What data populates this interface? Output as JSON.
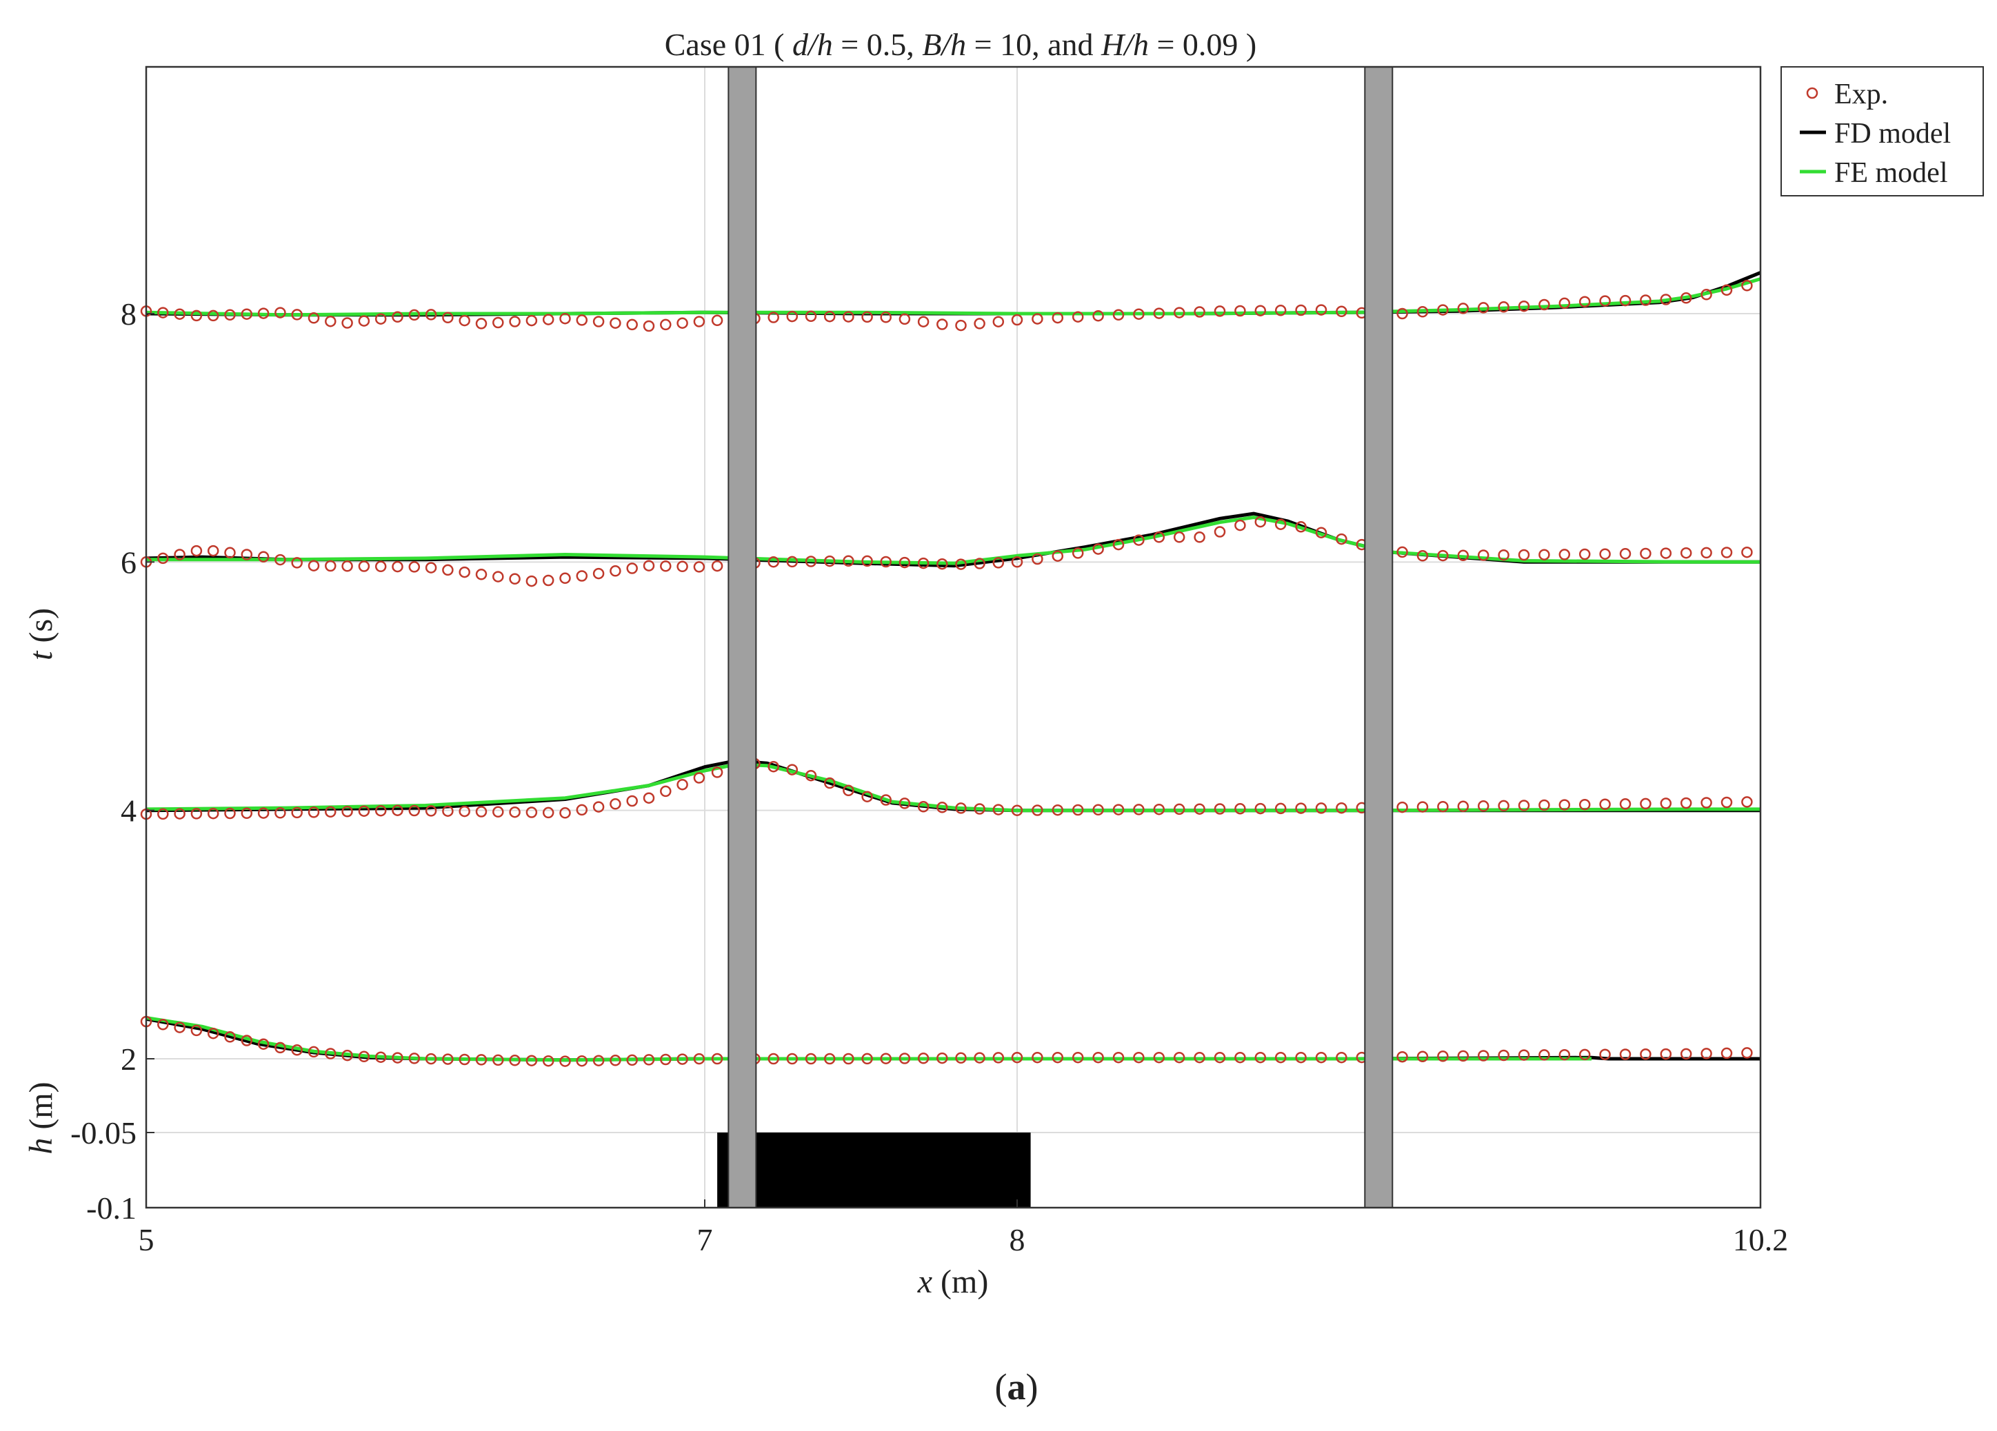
{
  "caption": {
    "open": "(",
    "letter": "a",
    "close": ")"
  },
  "chart_data": {
    "type": "line",
    "title_parts": [
      "Case 01 ( ",
      "d/h",
      " = 0.5, ",
      "B/h",
      " = 10, and ",
      "H/h",
      " = 0.09 )"
    ],
    "xlabel": {
      "var": "x",
      "unit": " (m)"
    },
    "ylabel_top": {
      "var": "t",
      "unit": " (s)"
    },
    "ylabel_bottom": {
      "var": "h",
      "unit": " (m)"
    },
    "xlim": [
      5,
      10.2
    ],
    "x_ticks": [
      5,
      7,
      8,
      10.2
    ],
    "x_tick_labels": [
      "5",
      "7",
      "8",
      "10.2"
    ],
    "t_ticks": [
      2,
      4,
      6,
      8
    ],
    "t_tick_labels": [
      "2",
      "4",
      "6",
      "8"
    ],
    "t_range": [
      1.4,
      10
    ],
    "h_ticks": [
      -0.05,
      -0.1
    ],
    "h_tick_labels": [
      "-0.05",
      "-0.1"
    ],
    "h_range": [
      -0.1,
      0
    ],
    "grid": true,
    "legend": {
      "position": "outside-right-top",
      "entries": [
        {
          "label": "Exp.",
          "color": "#c0392b",
          "style": "circle"
        },
        {
          "label": "FD model",
          "color": "#000000",
          "style": "line"
        },
        {
          "label": "FE model",
          "color": "#33dd33",
          "style": "line"
        }
      ]
    },
    "gauges": [
      7.12,
      9.07
    ],
    "obstacle": {
      "x_start": 7.04,
      "x_end": 8.04,
      "top_h": -0.05
    },
    "colors": {
      "exp": "#c0392b",
      "fd": "#000000",
      "fe": "#33dd33",
      "gauge": "#a0a0a0",
      "obstacle": "#000000",
      "grid": "#dcdcdc"
    },
    "profiles": [
      {
        "t": 2,
        "fd": [
          [
            5.0,
            2.32
          ],
          [
            5.2,
            2.24
          ],
          [
            5.4,
            2.12
          ],
          [
            5.6,
            2.05
          ],
          [
            5.8,
            2.01
          ],
          [
            6.0,
            2.0
          ],
          [
            6.5,
            1.99
          ],
          [
            7.0,
            2.0
          ],
          [
            8.0,
            2.0
          ],
          [
            9.0,
            2.0
          ],
          [
            9.7,
            2.01
          ],
          [
            9.75,
            2.0
          ],
          [
            10.2,
            2.0
          ]
        ],
        "fe": [
          [
            5.0,
            2.33
          ],
          [
            5.2,
            2.26
          ],
          [
            5.4,
            2.14
          ],
          [
            5.6,
            2.06
          ],
          [
            5.8,
            2.02
          ],
          [
            6.0,
            2.0
          ],
          [
            6.5,
            1.99
          ],
          [
            7.0,
            2.0
          ],
          [
            8.0,
            2.0
          ],
          [
            9.0,
            2.0
          ],
          [
            9.7,
            2.0
          ]
        ],
        "exp": [
          [
            5.0,
            2.3
          ],
          [
            5.25,
            2.2
          ],
          [
            5.5,
            2.08
          ],
          [
            5.75,
            2.02
          ],
          [
            6.0,
            2.0
          ],
          [
            6.5,
            1.98
          ],
          [
            7.0,
            2.0
          ],
          [
            7.5,
            2.0
          ],
          [
            8.0,
            2.01
          ],
          [
            8.5,
            2.01
          ],
          [
            9.0,
            2.01
          ],
          [
            9.5,
            2.03
          ],
          [
            10.0,
            2.04
          ],
          [
            10.2,
            2.05
          ]
        ]
      },
      {
        "t": 4,
        "fd": [
          [
            5.0,
            4.0
          ],
          [
            5.5,
            4.01
          ],
          [
            6.0,
            4.02
          ],
          [
            6.5,
            4.09
          ],
          [
            6.8,
            4.2
          ],
          [
            7.0,
            4.35
          ],
          [
            7.1,
            4.4
          ],
          [
            7.2,
            4.38
          ],
          [
            7.4,
            4.22
          ],
          [
            7.6,
            4.06
          ],
          [
            7.8,
            4.01
          ],
          [
            8.0,
            4.0
          ],
          [
            9.0,
            4.0
          ],
          [
            10.0,
            4.0
          ],
          [
            10.2,
            4.0
          ]
        ],
        "fe": [
          [
            5.0,
            4.01
          ],
          [
            5.5,
            4.02
          ],
          [
            6.0,
            4.04
          ],
          [
            6.5,
            4.1
          ],
          [
            6.8,
            4.2
          ],
          [
            7.0,
            4.32
          ],
          [
            7.1,
            4.37
          ],
          [
            7.2,
            4.36
          ],
          [
            7.4,
            4.24
          ],
          [
            7.6,
            4.07
          ],
          [
            7.8,
            4.02
          ],
          [
            8.0,
            4.0
          ],
          [
            9.0,
            4.0
          ],
          [
            10.0,
            4.01
          ],
          [
            10.2,
            4.01
          ]
        ],
        "exp": [
          [
            5.0,
            3.97
          ],
          [
            5.5,
            3.98
          ],
          [
            5.9,
            4.0
          ],
          [
            6.2,
            3.99
          ],
          [
            6.5,
            3.98
          ],
          [
            6.8,
            4.1
          ],
          [
            7.0,
            4.28
          ],
          [
            7.15,
            4.38
          ],
          [
            7.3,
            4.32
          ],
          [
            7.5,
            4.12
          ],
          [
            7.7,
            4.03
          ],
          [
            8.0,
            4.0
          ],
          [
            9.0,
            4.02
          ],
          [
            9.5,
            4.04
          ],
          [
            10.0,
            4.06
          ],
          [
            10.2,
            4.07
          ]
        ]
      },
      {
        "t": 6,
        "fd": [
          [
            5.0,
            6.03
          ],
          [
            5.2,
            6.04
          ],
          [
            5.5,
            6.02
          ],
          [
            6.0,
            6.02
          ],
          [
            6.5,
            6.04
          ],
          [
            7.0,
            6.03
          ],
          [
            7.5,
            5.99
          ],
          [
            7.8,
            5.97
          ],
          [
            8.0,
            6.03
          ],
          [
            8.2,
            6.12
          ],
          [
            8.4,
            6.22
          ],
          [
            8.6,
            6.35
          ],
          [
            8.7,
            6.39
          ],
          [
            8.8,
            6.33
          ],
          [
            8.95,
            6.18
          ],
          [
            9.1,
            6.08
          ],
          [
            9.5,
            6.0
          ],
          [
            10.0,
            6.0
          ],
          [
            10.2,
            6.0
          ]
        ],
        "fe": [
          [
            5.0,
            6.02
          ],
          [
            5.5,
            6.02
          ],
          [
            6.0,
            6.03
          ],
          [
            6.5,
            6.06
          ],
          [
            7.0,
            6.04
          ],
          [
            7.5,
            6.0
          ],
          [
            7.8,
            5.99
          ],
          [
            8.0,
            6.05
          ],
          [
            8.2,
            6.1
          ],
          [
            8.4,
            6.2
          ],
          [
            8.6,
            6.32
          ],
          [
            8.7,
            6.36
          ],
          [
            8.8,
            6.31
          ],
          [
            8.95,
            6.18
          ],
          [
            9.1,
            6.08
          ],
          [
            9.5,
            6.01
          ],
          [
            10.0,
            6.0
          ],
          [
            10.2,
            6.0
          ]
        ],
        "exp": [
          [
            5.0,
            6.0
          ],
          [
            5.2,
            6.1
          ],
          [
            5.4,
            6.05
          ],
          [
            5.6,
            5.97
          ],
          [
            6.0,
            5.96
          ],
          [
            6.2,
            5.9
          ],
          [
            6.4,
            5.84
          ],
          [
            6.6,
            5.9
          ],
          [
            6.8,
            5.97
          ],
          [
            7.0,
            5.96
          ],
          [
            7.2,
            6.0
          ],
          [
            7.5,
            6.01
          ],
          [
            7.8,
            5.98
          ],
          [
            8.0,
            6.0
          ],
          [
            8.2,
            6.08
          ],
          [
            8.4,
            6.2
          ],
          [
            8.55,
            6.2
          ],
          [
            8.7,
            6.33
          ],
          [
            8.85,
            6.28
          ],
          [
            9.0,
            6.15
          ],
          [
            9.2,
            6.05
          ],
          [
            9.6,
            6.06
          ],
          [
            10.2,
            6.08
          ]
        ]
      },
      {
        "t": 8,
        "fd": [
          [
            5.0,
            8.0
          ],
          [
            5.5,
            7.99
          ],
          [
            6.0,
            7.99
          ],
          [
            6.5,
            8.0
          ],
          [
            7.0,
            8.01
          ],
          [
            7.5,
            8.0
          ],
          [
            8.0,
            8.0
          ],
          [
            8.5,
            8.0
          ],
          [
            9.0,
            8.01
          ],
          [
            9.3,
            8.02
          ],
          [
            9.6,
            8.05
          ],
          [
            9.9,
            8.09
          ],
          [
            10.0,
            8.13
          ],
          [
            10.1,
            8.22
          ],
          [
            10.2,
            8.33
          ]
        ],
        "fe": [
          [
            5.0,
            8.01
          ],
          [
            5.5,
            7.99
          ],
          [
            6.0,
            8.0
          ],
          [
            6.5,
            8.0
          ],
          [
            7.0,
            8.01
          ],
          [
            7.5,
            8.01
          ],
          [
            8.0,
            8.0
          ],
          [
            8.5,
            8.0
          ],
          [
            9.0,
            8.01
          ],
          [
            9.3,
            8.03
          ],
          [
            9.6,
            8.06
          ],
          [
            9.9,
            8.1
          ],
          [
            10.0,
            8.14
          ],
          [
            10.1,
            8.2
          ],
          [
            10.2,
            8.28
          ]
        ],
        "exp": [
          [
            5.0,
            8.02
          ],
          [
            5.2,
            7.98
          ],
          [
            5.5,
            8.01
          ],
          [
            5.7,
            7.92
          ],
          [
            6.0,
            8.0
          ],
          [
            6.2,
            7.92
          ],
          [
            6.5,
            7.96
          ],
          [
            6.8,
            7.9
          ],
          [
            7.0,
            7.94
          ],
          [
            7.3,
            7.98
          ],
          [
            7.6,
            7.97
          ],
          [
            7.8,
            7.9
          ],
          [
            8.0,
            7.95
          ],
          [
            8.3,
            7.99
          ],
          [
            8.6,
            8.02
          ],
          [
            8.9,
            8.03
          ],
          [
            9.1,
            7.99
          ],
          [
            9.3,
            8.04
          ],
          [
            9.5,
            8.06
          ],
          [
            9.7,
            8.1
          ],
          [
            9.9,
            8.11
          ],
          [
            10.0,
            8.13
          ],
          [
            10.2,
            8.25
          ]
        ]
      }
    ]
  }
}
